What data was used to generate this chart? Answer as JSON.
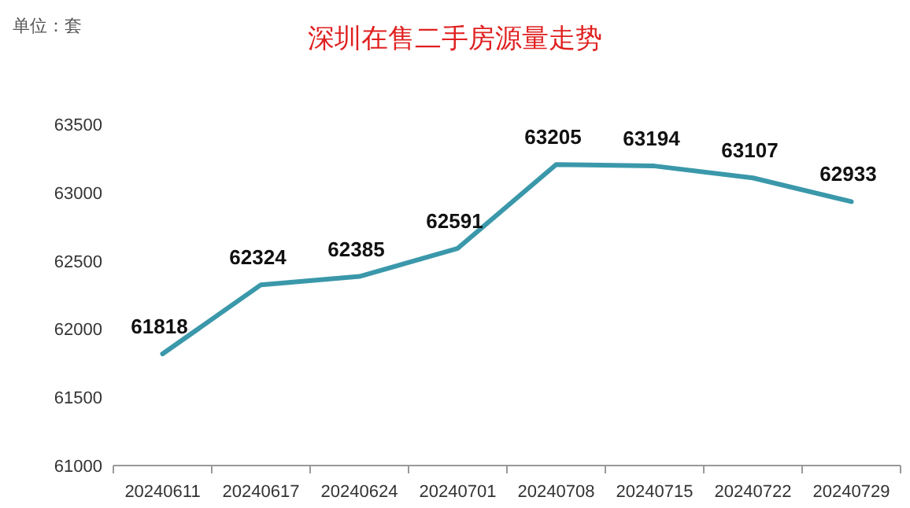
{
  "chart_data": {
    "type": "line",
    "title": "深圳在售二手房源量走势",
    "ylabel": "单位：套",
    "categories": [
      "20240611",
      "20240617",
      "20240624",
      "20240701",
      "20240708",
      "20240715",
      "20240722",
      "20240729"
    ],
    "series": [
      {
        "color": "#3a98aa",
        "values": [
          61818,
          62324,
          62385,
          62591,
          63205,
          63194,
          63107,
          62933
        ]
      }
    ],
    "ylim": [
      61000,
      63500
    ],
    "yticks": [
      61000,
      61500,
      62000,
      62500,
      63000,
      63500
    ],
    "data_labels": true,
    "marker": "none",
    "line_style": "solid"
  }
}
